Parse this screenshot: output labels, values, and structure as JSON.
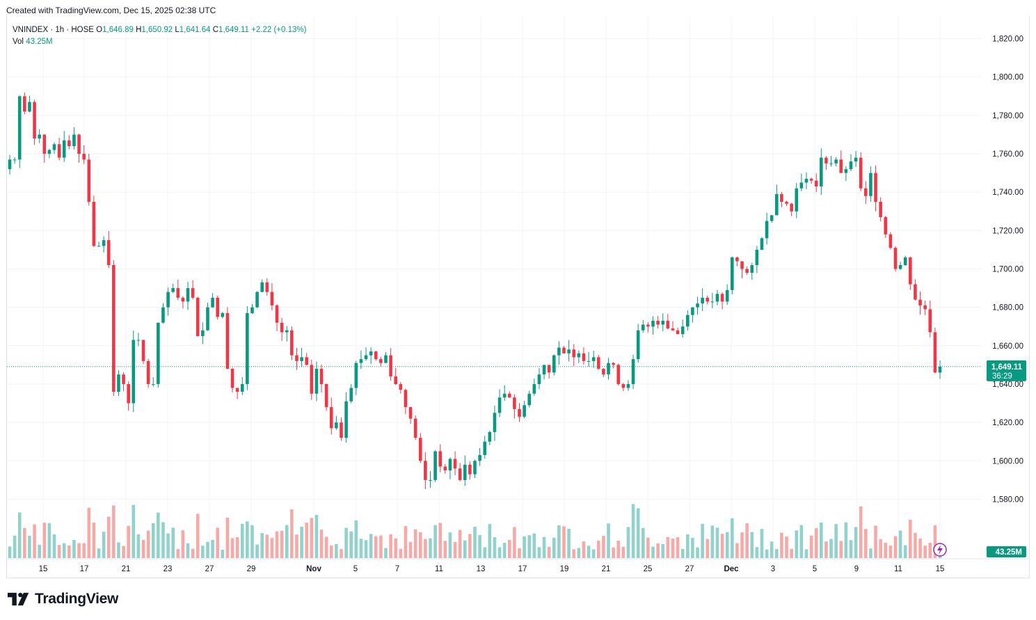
{
  "caption": "Created with TradingView.com, Dec 15, 2025 02:38 UTC",
  "legend": {
    "symbol": "VNINDEX · 1h · HOSE",
    "o_label": "O",
    "o_value": "1,646.89",
    "h_label": "H",
    "h_value": "1,650.92",
    "l_label": "L",
    "l_value": "1,641.64",
    "c_label": "C",
    "c_value": "1,649.11",
    "change": "+2.22 (+0.13%)",
    "vol_label": "Vol",
    "vol_value": "43.25M"
  },
  "price_badge": {
    "price": "1,649.11",
    "countdown": "36:29"
  },
  "vol_badge": "43.25M",
  "brand": "TradingView",
  "colors": {
    "up": "#089981",
    "down": "#f23645",
    "vol_up": "#92d2cc",
    "vol_down": "#f7a9a7",
    "grid": "#f0f3fa",
    "text": "#131722",
    "price_line": "#089981"
  },
  "icons": {
    "flash": "lightning-icon",
    "logo": "tradingview-logo"
  },
  "chart_data": {
    "type": "candlestick",
    "title": "VNINDEX · 1h · HOSE",
    "ylim": [
      1570,
      1830
    ],
    "y_ticks": [
      "1,580.00",
      "1,600.00",
      "1,620.00",
      "1,640.00",
      "1,660.00",
      "1,680.00",
      "1,700.00",
      "1,720.00",
      "1,740.00",
      "1,760.00",
      "1,780.00",
      "1,800.00",
      "1,820.00"
    ],
    "x_ticks": [
      "15",
      "17",
      "21",
      "23",
      "27",
      "29",
      "Nov",
      "5",
      "7",
      "11",
      "13",
      "17",
      "19",
      "21",
      "25",
      "27",
      "Dec",
      "3",
      "5",
      "9",
      "11",
      "15"
    ],
    "last_price": 1649.11,
    "last_volume": "43.25M",
    "series": [
      {
        "name": "price",
        "ohlc_path": [
          1752,
          1757,
          1757,
          1790,
          1782,
          1787,
          1768,
          1770,
          1760,
          1762,
          1765,
          1758,
          1767,
          1764,
          1770,
          1760,
          1757,
          1735,
          1712,
          1712,
          1715,
          1702,
          1636,
          1645,
          1640,
          1630,
          1663,
          1663,
          1652,
          1640,
          1640,
          1672,
          1680,
          1688,
          1690,
          1685,
          1683,
          1690,
          1685,
          1665,
          1668,
          1680,
          1685,
          1675,
          1677,
          1648,
          1638,
          1636,
          1640,
          1677,
          1680,
          1688,
          1693,
          1688,
          1681,
          1672,
          1667,
          1668,
          1655,
          1652,
          1654,
          1650,
          1635,
          1648,
          1640,
          1628,
          1617,
          1620,
          1612,
          1631,
          1638,
          1651,
          1653,
          1655,
          1657,
          1653,
          1651,
          1655,
          1644,
          1640,
          1637,
          1628,
          1622,
          1612,
          1600,
          1590,
          1590,
          1605,
          1597,
          1595,
          1601,
          1596,
          1590,
          1598,
          1593,
          1600,
          1603,
          1610,
          1615,
          1625,
          1633,
          1635,
          1633,
          1627,
          1623,
          1629,
          1635,
          1640,
          1645,
          1650,
          1646,
          1655,
          1659,
          1656,
          1658,
          1654,
          1656,
          1652,
          1652,
          1654,
          1648,
          1645,
          1651,
          1650,
          1640,
          1638,
          1640,
          1653,
          1668,
          1671,
          1670,
          1673,
          1671,
          1673,
          1669,
          1668,
          1666,
          1670,
          1676,
          1680,
          1682,
          1685,
          1683,
          1683,
          1687,
          1683,
          1689,
          1706,
          1704,
          1700,
          1698,
          1702,
          1710,
          1716,
          1725,
          1728,
          1739,
          1735,
          1734,
          1730,
          1742,
          1745,
          1747,
          1746,
          1743,
          1758,
          1755,
          1755,
          1757,
          1750,
          1752,
          1756,
          1758,
          1742,
          1738,
          1750,
          1735,
          1727,
          1718,
          1711,
          1700,
          1702,
          1706,
          1692,
          1684,
          1681,
          1679,
          1667,
          1646,
          1649.11
        ]
      }
    ]
  }
}
